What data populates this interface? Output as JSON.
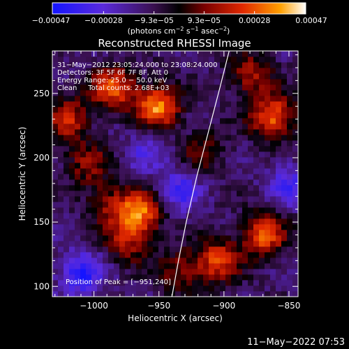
{
  "chart_data": {
    "type": "heatmap",
    "title": "Reconstructed RHESSI Image",
    "xlabel": "Heliocentric X (arcsec)",
    "ylabel": "Heliocentric Y (arcsec)",
    "xlim": [
      -1032,
      -843
    ],
    "ylim": [
      92,
      283
    ],
    "x_ticks": [
      -1000,
      -950,
      -900,
      -850
    ],
    "y_ticks": [
      100,
      150,
      200,
      250
    ],
    "x_tick_labels": [
      "−1000",
      "−950",
      "−900",
      "−850"
    ],
    "y_tick_labels": [
      "100",
      "150",
      "200",
      "250"
    ],
    "colorbar": {
      "range": [
        -0.00047,
        0.00047
      ],
      "ticks": [
        -0.00047,
        -0.00028,
        -9.3e-05,
        9.3e-05,
        0.00028,
        0.00047
      ],
      "tick_labels": [
        "−0.00047",
        "−0.00028",
        "−9.3e−05",
        "9.3e−05",
        "0.00028",
        "0.00047"
      ],
      "label_main": "(photons cm",
      "label_sup1": "−2",
      "label_mid": " s",
      "label_sup2": "−1",
      "label_mid2": " asec",
      "label_sup3": "−2",
      "label_end": ")"
    },
    "annotations": {
      "time_range": "31−May−2012 23:05:24.000 to 23:08:24.000",
      "detectors": "Detectors: 3F 5F 6F 7F 8F, Att 0",
      "energy": "Energy Range: 25.0 − 50.0 keV",
      "method": "Clean     Total counts: 2.68E+03",
      "peak": "Position of Peak = [−951,240]"
    },
    "peak": [
      -951,
      240
    ],
    "limb": [
      [
        -940,
        92
      ],
      [
        -935,
        120
      ],
      [
        -929,
        150
      ],
      [
        -921,
        185
      ],
      [
        -912,
        220
      ],
      [
        -903,
        255
      ],
      [
        -896,
        283
      ]
    ],
    "blobs": [
      {
        "x": -985,
        "y": 254,
        "amp": 0.00038
      },
      {
        "x": -951,
        "y": 240,
        "amp": 0.00047
      },
      {
        "x": -1020,
        "y": 230,
        "amp": 0.0003
      },
      {
        "x": -965,
        "y": 158,
        "amp": 0.00045
      },
      {
        "x": -975,
        "y": 135,
        "amp": 0.00025
      },
      {
        "x": -905,
        "y": 120,
        "amp": 0.00036
      },
      {
        "x": -870,
        "y": 140,
        "amp": 0.0004
      },
      {
        "x": -862,
        "y": 232,
        "amp": 0.00042
      },
      {
        "x": -880,
        "y": 265,
        "amp": 0.00026
      },
      {
        "x": -915,
        "y": 205,
        "amp": 0.00018
      },
      {
        "x": -1005,
        "y": 195,
        "amp": 0.00022
      },
      {
        "x": -990,
        "y": 165,
        "amp": 0.0002
      },
      {
        "x": -935,
        "y": 112,
        "amp": 0.00022
      },
      {
        "x": -850,
        "y": 180,
        "amp": -0.0002
      },
      {
        "x": -1010,
        "y": 110,
        "amp": -0.0003
      },
      {
        "x": -935,
        "y": 175,
        "amp": -0.00022
      },
      {
        "x": -960,
        "y": 205,
        "amp": -0.00015
      }
    ]
  },
  "footer": {
    "timestamp": "11−May−2022 07:53"
  }
}
